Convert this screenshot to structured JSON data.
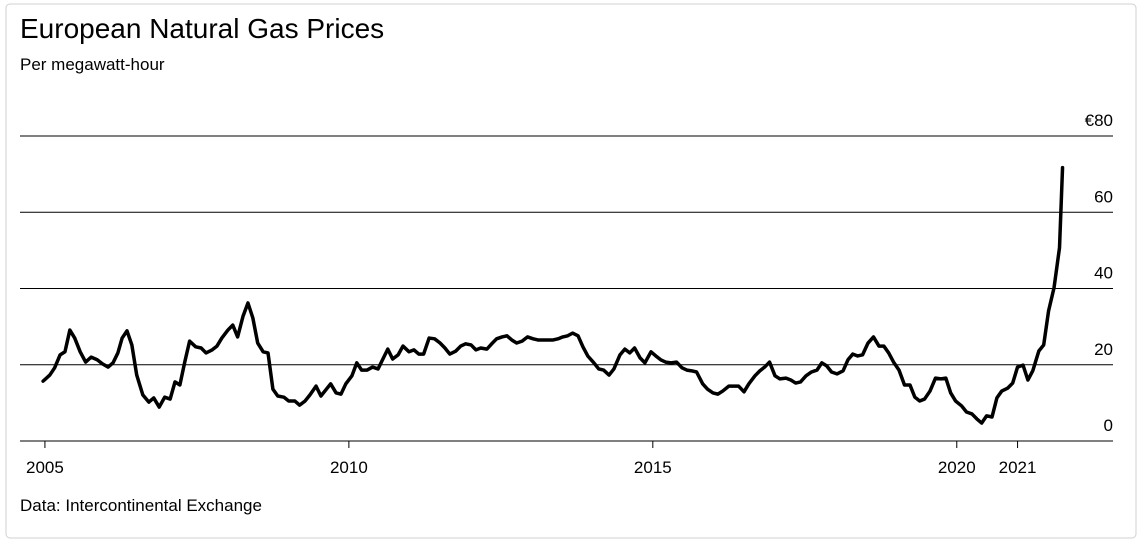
{
  "chart_data": {
    "type": "line",
    "title": "European Natural Gas Prices",
    "subtitle": "Per megawatt-hour",
    "source": "Data: Intercontinental Exchange",
    "color": "#000000",
    "grid": true,
    "xlim": [
      2004.59,
      2022.57
    ],
    "xticks": [
      2005,
      2010,
      2015,
      2020,
      2021
    ],
    "ylim": [
      0,
      80
    ],
    "yticks": [
      0,
      20,
      40,
      60,
      {
        "value": 80,
        "label": "€80"
      }
    ],
    "x": [
      2004.97,
      2005.08,
      2005.16,
      2005.25,
      2005.33,
      2005.41,
      2005.49,
      2005.58,
      2005.67,
      2005.76,
      2005.86,
      2005.95,
      2006.04,
      2006.12,
      2006.2,
      2006.27,
      2006.35,
      2006.43,
      2006.51,
      2006.61,
      2006.71,
      2006.79,
      2006.88,
      2006.97,
      2007.06,
      2007.14,
      2007.22,
      2007.3,
      2007.38,
      2007.48,
      2007.57,
      2007.65,
      2007.75,
      2007.83,
      2007.91,
      2008.01,
      2008.09,
      2008.17,
      2008.26,
      2008.34,
      2008.42,
      2008.5,
      2008.59,
      2008.67,
      2008.75,
      2008.83,
      2008.93,
      2009.01,
      2009.11,
      2009.19,
      2009.28,
      2009.36,
      2009.46,
      2009.54,
      2009.62,
      2009.7,
      2009.79,
      2009.87,
      2009.95,
      2010.05,
      2010.13,
      2010.21,
      2010.3,
      2010.39,
      2010.48,
      2010.56,
      2010.64,
      2010.72,
      2010.81,
      2010.89,
      2010.99,
      2011.07,
      2011.15,
      2011.23,
      2011.32,
      2011.41,
      2011.5,
      2011.58,
      2011.66,
      2011.76,
      2011.84,
      2011.92,
      2012.01,
      2012.09,
      2012.17,
      2012.27,
      2012.35,
      2012.43,
      2012.52,
      2012.6,
      2012.68,
      2012.76,
      2012.85,
      2012.94,
      2013.03,
      2013.11,
      2013.19,
      2013.27,
      2013.36,
      2013.44,
      2013.52,
      2013.6,
      2013.68,
      2013.77,
      2013.85,
      2013.93,
      2014.03,
      2014.11,
      2014.19,
      2014.28,
      2014.36,
      2014.46,
      2014.54,
      2014.62,
      2014.7,
      2014.79,
      2014.87,
      2014.97,
      2015.05,
      2015.13,
      2015.21,
      2015.3,
      2015.39,
      2015.48,
      2015.56,
      2015.64,
      2015.72,
      2015.82,
      2015.9,
      2015.99,
      2016.07,
      2016.15,
      2016.25,
      2016.33,
      2016.41,
      2016.5,
      2016.58,
      2016.68,
      2016.76,
      2016.84,
      2016.92,
      2017.01,
      2017.09,
      2017.19,
      2017.27,
      2017.35,
      2017.43,
      2017.52,
      2017.61,
      2017.7,
      2017.78,
      2017.86,
      2017.94,
      2018.03,
      2018.13,
      2018.21,
      2018.29,
      2018.37,
      2018.45,
      2018.54,
      2018.63,
      2018.72,
      2018.8,
      2018.88,
      2018.96,
      2019.05,
      2019.14,
      2019.23,
      2019.31,
      2019.39,
      2019.47,
      2019.56,
      2019.65,
      2019.74,
      2019.82,
      2019.9,
      2019.98,
      2020.08,
      2020.16,
      2020.25,
      2020.33,
      2020.41,
      2020.49,
      2020.58,
      2020.66,
      2020.74,
      2020.84,
      2020.92,
      2021.0,
      2021.09,
      2021.17,
      2021.25,
      2021.35,
      2021.43,
      2021.51,
      2021.6,
      2021.69,
      2021.74
    ],
    "values": [
      15.7,
      17.3,
      19.2,
      22.6,
      23.4,
      29.1,
      27,
      23.4,
      20.7,
      22,
      21.3,
      20.2,
      19.4,
      20.5,
      23.1,
      27,
      28.9,
      25.2,
      17.3,
      12.1,
      10.2,
      11.3,
      8.9,
      11.5,
      11,
      15.5,
      14.7,
      20.7,
      26.2,
      24.7,
      24.4,
      23.1,
      23.9,
      24.9,
      27,
      29.1,
      30.4,
      27.3,
      32.8,
      36.2,
      32.3,
      25.7,
      23.4,
      23.1,
      13.6,
      11.8,
      11.5,
      10.5,
      10.5,
      9.4,
      10.5,
      12.1,
      14.4,
      11.8,
      13.4,
      15,
      12.6,
      12.3,
      15,
      17.1,
      20.5,
      18.6,
      18.6,
      19.4,
      18.9,
      21.5,
      24.1,
      21.5,
      22.6,
      24.9,
      23.4,
      23.9,
      22.8,
      22.8,
      27,
      26.8,
      25.7,
      24.4,
      22.8,
      23.6,
      24.9,
      25.5,
      25.2,
      23.9,
      24.4,
      24.1,
      25.5,
      26.8,
      27.3,
      27.6,
      26.5,
      25.7,
      26.2,
      27.3,
      26.8,
      26.5,
      26.5,
      26.5,
      26.5,
      26.8,
      27.3,
      27.6,
      28.3,
      27.6,
      24.7,
      22.3,
      20.5,
      18.9,
      18.6,
      17.3,
      18.9,
      22.6,
      24.1,
      23.1,
      24.4,
      21.8,
      20.5,
      23.4,
      22.3,
      21.3,
      20.7,
      20.5,
      20.7,
      19.2,
      18.6,
      18.4,
      18.1,
      15,
      13.6,
      12.6,
      12.3,
      13.1,
      14.4,
      14.4,
      14.4,
      12.9,
      15,
      17.1,
      18.4,
      19.4,
      20.7,
      17.1,
      16.3,
      16.5,
      16,
      15.2,
      15.5,
      17.1,
      18.1,
      18.6,
      20.5,
      19.7,
      18.1,
      17.6,
      18.4,
      21.3,
      22.8,
      22.3,
      22.6,
      25.7,
      27.3,
      24.9,
      24.9,
      23.1,
      20.7,
      18.6,
      14.7,
      14.7,
      11.5,
      10.5,
      11,
      13.1,
      16.5,
      16.3,
      16.5,
      12.6,
      10.5,
      9.2,
      7.6,
      7.1,
      5.8,
      4.7,
      6.6,
      6.3,
      11.3,
      13.1,
      13.9,
      15.2,
      19.4,
      19.9,
      16,
      18.4,
      23.6,
      25.2,
      34.1,
      40.2,
      50.7,
      71.7
    ]
  }
}
